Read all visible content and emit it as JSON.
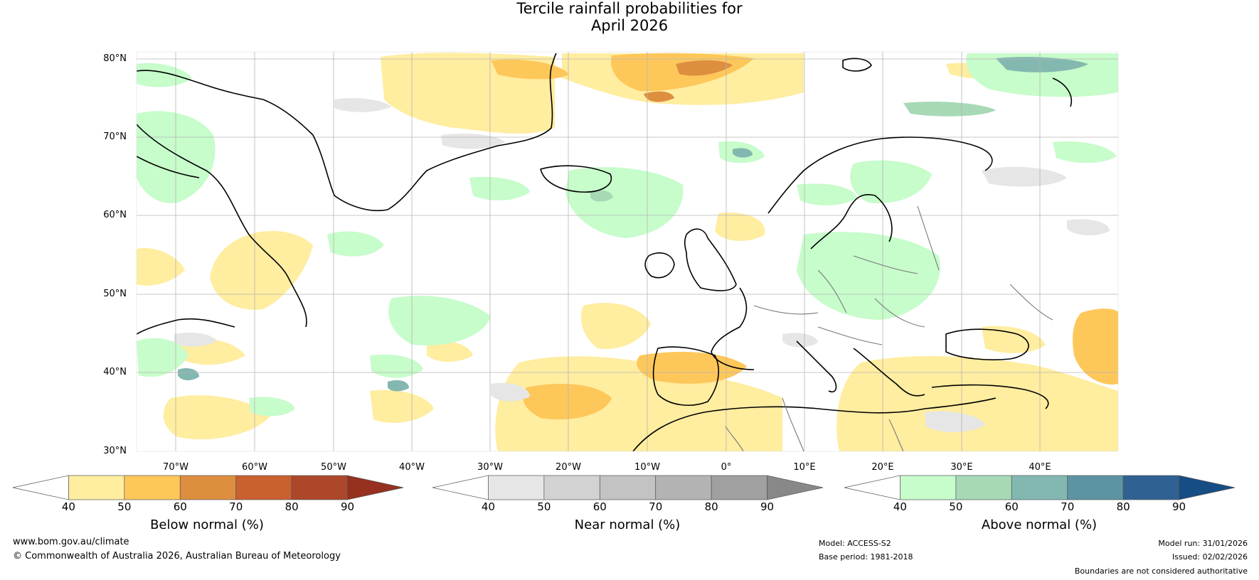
{
  "title": {
    "line1": "Tercile rainfall probabilities for",
    "line2": "April 2026"
  },
  "map": {
    "lat_labels": [
      "80°N",
      "70°N",
      "60°N",
      "50°N",
      "40°N",
      "30°N"
    ],
    "lon_labels": [
      "70°W",
      "60°W",
      "50°W",
      "40°W",
      "30°W",
      "20°W",
      "10°W",
      "0°",
      "10°E",
      "20°E",
      "30°E",
      "40°E"
    ],
    "colors": {
      "land_line": "#000000",
      "border_line": "#777777",
      "grid": "#b5b5b5"
    }
  },
  "colorbars": [
    {
      "label": "Below normal (%)",
      "ticks": [
        "40",
        "50",
        "60",
        "70",
        "80",
        "90"
      ],
      "colors": [
        "#ffffff",
        "#ffeda0",
        "#fec75a",
        "#de8e3f",
        "#c9602f",
        "#ad4729",
        "#96301f"
      ]
    },
    {
      "label": "Near normal (%)",
      "ticks": [
        "40",
        "50",
        "60",
        "70",
        "80",
        "90"
      ],
      "colors": [
        "#ffffff",
        "#e6e6e6",
        "#d2d2d2",
        "#c3c3c3",
        "#b3b3b3",
        "#a0a0a0",
        "#888888"
      ]
    },
    {
      "label": "Above normal (%)",
      "ticks": [
        "40",
        "50",
        "60",
        "70",
        "80",
        "90"
      ],
      "colors": [
        "#ffffff",
        "#c7fccb",
        "#a7d9b6",
        "#83b8b0",
        "#5d94a3",
        "#2f6193",
        "#174d85"
      ]
    }
  ],
  "footer": {
    "url": "www.bom.gov.au/climate",
    "copyright": "© Commonwealth of Australia 2026, Australian Bureau of Meteorology",
    "model": "Model: ACCESS-S2",
    "base_period": "Base period: 1981-2018",
    "model_run": "Model run: 31/01/2026",
    "issued": "Issued: 02/02/2026",
    "disclaimer": "Boundaries are not considered authoritative"
  }
}
